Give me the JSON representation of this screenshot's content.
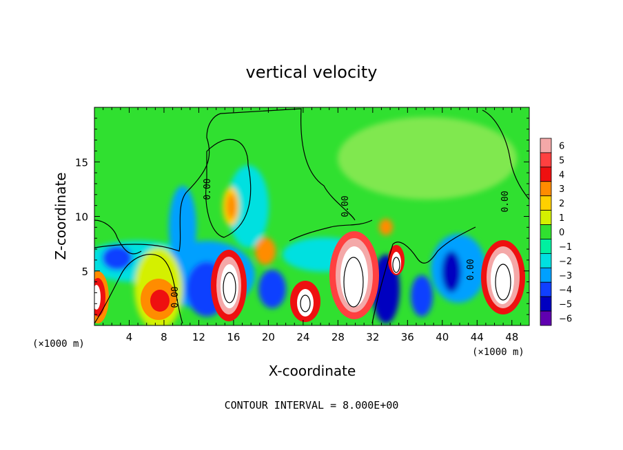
{
  "chart_data": {
    "type": "heatmap",
    "title": "vertical velocity",
    "xlabel": "X-coordinate",
    "ylabel": "Z-coordinate",
    "x_unit_left": "(×1000 m)",
    "x_unit_right": "(×1000 m)",
    "footer": "CONTOUR INTERVAL = 8.000E+00",
    "xlim": [
      0,
      50
    ],
    "ylim": [
      0,
      20
    ],
    "x_ticks": [
      4,
      8,
      12,
      16,
      20,
      24,
      28,
      32,
      36,
      40,
      44,
      48
    ],
    "y_ticks": [
      5,
      10,
      15
    ],
    "contour_labels": [
      "0.00",
      "0.00",
      "0.00",
      "0.00",
      "0.00"
    ],
    "colorbar": {
      "levels": [
        6,
        5,
        4,
        3,
        2,
        1,
        0,
        -1,
        -2,
        -3,
        -4,
        -5,
        -6
      ],
      "level_labels": [
        "6",
        "5",
        "4",
        "3",
        "2",
        "1",
        "0",
        "−1",
        "−2",
        "−3",
        "−4",
        "−5",
        "−6"
      ],
      "colors": [
        "#f4a8a8",
        "#ff4040",
        "#ee1010",
        "#ff8c00",
        "#ffd000",
        "#d4f000",
        "#30e030",
        "#00f0a0",
        "#00e0e0",
        "#00a0ff",
        "#1040ff",
        "#0000c0",
        "#6000b0"
      ]
    },
    "features": [
      {
        "type": "updraft",
        "x": 1.0,
        "z": 2.7,
        "value": 6
      },
      {
        "type": "updraft",
        "x": 7.8,
        "z": 2.3,
        "value": 5
      },
      {
        "type": "updraft",
        "x": 15.5,
        "z": 3.2,
        "value": 6
      },
      {
        "type": "updraft",
        "x": 24.3,
        "z": 2.2,
        "value": 6
      },
      {
        "type": "updraft",
        "x": 29.8,
        "z": 4.0,
        "value": 6
      },
      {
        "type": "updraft",
        "x": 34.6,
        "z": 5.0,
        "value": 6
      },
      {
        "type": "updraft",
        "x": 46.3,
        "z": 3.9,
        "value": 6
      },
      {
        "type": "updraft",
        "x": 15.5,
        "z": 10.8,
        "value": 3
      },
      {
        "type": "updraft",
        "x": 19.5,
        "z": 6.5,
        "value": 4
      },
      {
        "type": "downdraft",
        "x": 13.2,
        "z": 3.5,
        "value": -5
      },
      {
        "type": "downdraft",
        "x": 10.5,
        "z": 10.0,
        "value": -4
      },
      {
        "type": "downdraft",
        "x": 3.5,
        "z": 5.5,
        "value": -3
      },
      {
        "type": "downdraft",
        "x": 20.5,
        "z": 2.5,
        "value": -4
      },
      {
        "type": "downdraft",
        "x": 33.0,
        "z": 2.5,
        "value": -6
      },
      {
        "type": "downdraft",
        "x": 37.5,
        "z": 2.5,
        "value": -5
      },
      {
        "type": "downdraft",
        "x": 41.0,
        "z": 5.0,
        "value": -5
      },
      {
        "type": "downdraft",
        "x": 24.5,
        "z": 8.0,
        "value": -3
      }
    ]
  }
}
